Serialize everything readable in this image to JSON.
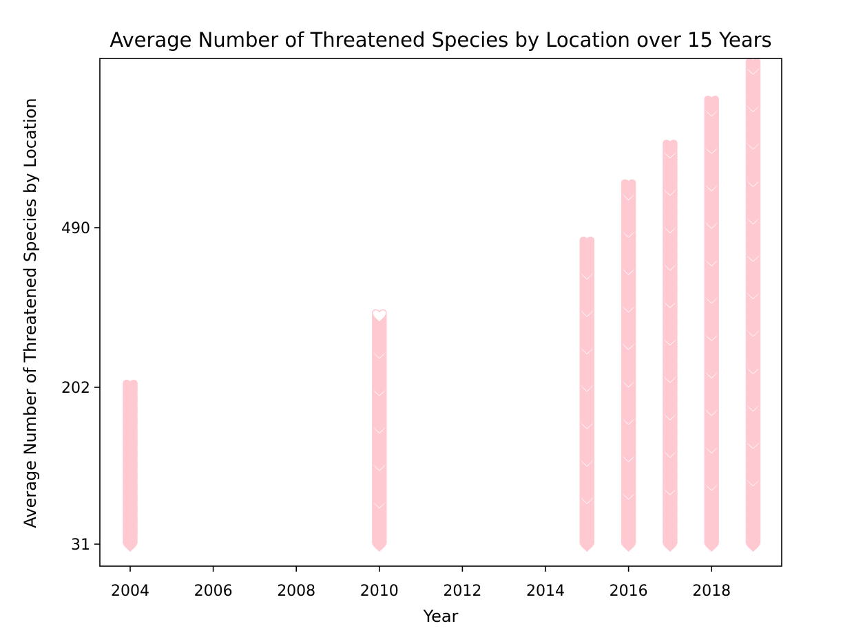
{
  "chart_data": {
    "type": "scatter",
    "title": "Average Number of Threatened Species by Location over 15 Years",
    "xlabel": "Year",
    "ylabel": "Average Number of Threatened Species by Location",
    "x_ticks": [
      "2004",
      "2006",
      "2008",
      "2010",
      "2012",
      "2014",
      "2016",
      "2018"
    ],
    "y_ticks": [
      "31",
      "202",
      "490"
    ],
    "marker": "heart",
    "marker_color": "#ffc9d2",
    "grid": false,
    "legend": "none",
    "columns": [
      {
        "x": 2004,
        "y_min": 31,
        "y_max": 205
      },
      {
        "x": 2010,
        "y_min": 31,
        "y_max": 335
      },
      {
        "x": 2015,
        "y_min": 31,
        "y_max": 467
      },
      {
        "x": 2016,
        "y_min": 31,
        "y_max": 569
      },
      {
        "x": 2017,
        "y_min": 31,
        "y_max": 640
      },
      {
        "x": 2018,
        "y_min": 31,
        "y_max": 720
      },
      {
        "x": 2019,
        "y_min": 31,
        "y_max": 787
      }
    ]
  }
}
